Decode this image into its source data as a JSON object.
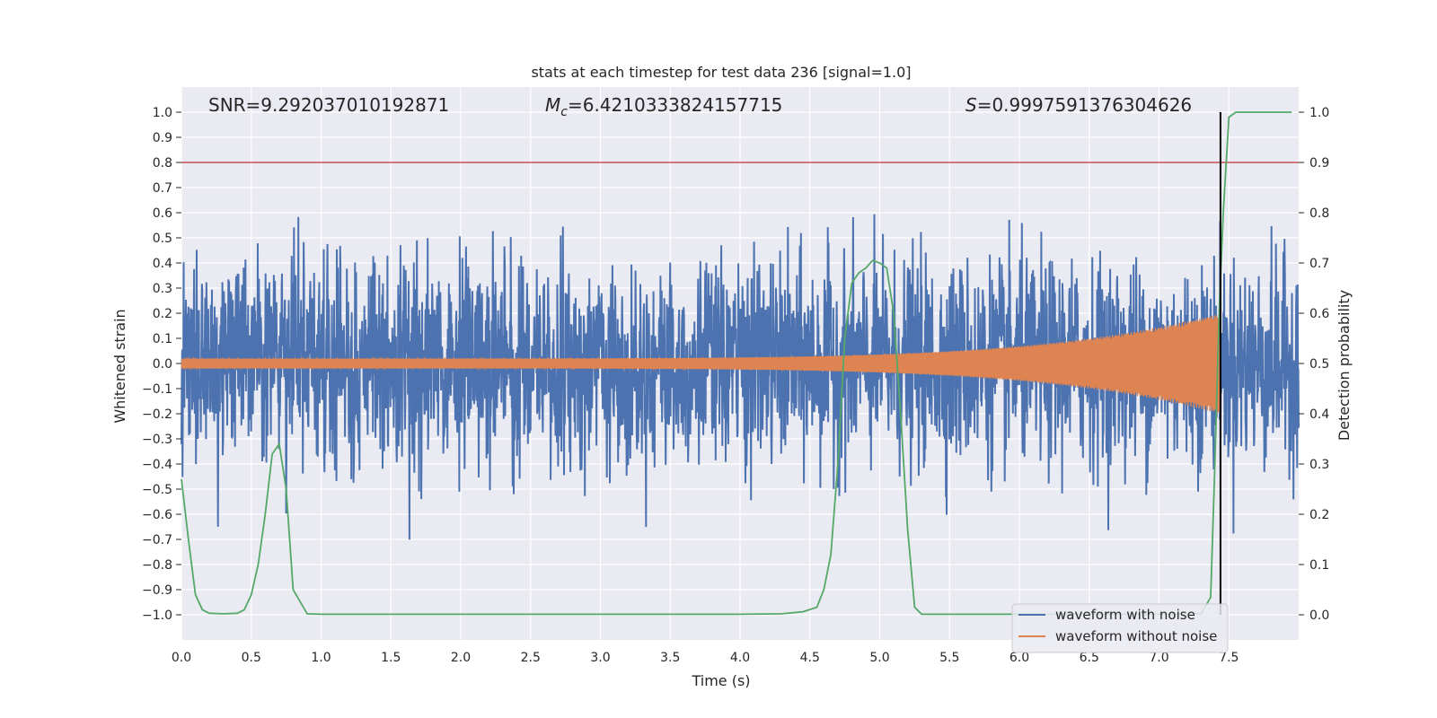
{
  "chart_data": {
    "type": "line",
    "title": "stats at each timestep for test data 236 [signal=1.0]",
    "xlabel": "Time (s)",
    "ylabel": "Whitened strain",
    "ylabel_right": "Detection probability",
    "xlim": [
      0.0,
      8.0
    ],
    "ylim": [
      -1.1,
      1.1
    ],
    "ylim_right": [
      -0.05,
      1.05
    ],
    "x_ticks": [
      "0.0",
      "0.5",
      "1.0",
      "1.5",
      "2.0",
      "2.5",
      "3.0",
      "3.5",
      "4.0",
      "4.5",
      "5.0",
      "5.5",
      "6.0",
      "6.5",
      "7.0",
      "7.5"
    ],
    "y_ticks": [
      "1.0",
      "0.9",
      "0.8",
      "0.7",
      "0.6",
      "0.5",
      "0.4",
      "0.3",
      "0.2",
      "0.1",
      "0.0",
      "−0.1",
      "−0.2",
      "−0.3",
      "−0.4",
      "−0.5",
      "−0.6",
      "−0.7",
      "−0.8",
      "−0.9",
      "−1.0"
    ],
    "y_ticks_right": [
      "1.0",
      "0.9",
      "0.8",
      "0.7",
      "0.6",
      "0.5",
      "0.4",
      "0.3",
      "0.2",
      "0.1",
      "0.0"
    ],
    "grid": true,
    "threshold_line": 0.8,
    "merger_time": 7.44,
    "stats": {
      "snr": "SNR=9.292037010192871",
      "mc_symbol": "M",
      "mc_sub": "c",
      "mc_value": "=6.4210333824157715",
      "s_symbol": "S",
      "s_value": "=0.9997591376304626"
    },
    "legend": {
      "position": "lower-right",
      "entries": [
        {
          "label": "waveform with noise",
          "color": "#4c72b0"
        },
        {
          "label": "waveform without noise",
          "color": "#dd8452"
        }
      ]
    },
    "series": [
      {
        "name": "waveform with noise",
        "color": "#4c72b0",
        "kind": "noise",
        "amplitude": 0.3
      },
      {
        "name": "waveform without noise",
        "color": "#dd8452",
        "kind": "chirp",
        "amplitude_start": 0.02,
        "amplitude_end": 0.2
      },
      {
        "name": "detection probability",
        "color": "#55a868",
        "axis": "right",
        "x": [
          0.0,
          0.05,
          0.1,
          0.15,
          0.2,
          0.3,
          0.4,
          0.45,
          0.5,
          0.55,
          0.6,
          0.65,
          0.7,
          0.75,
          0.8,
          0.9,
          1.0,
          1.5,
          2.0,
          3.0,
          4.0,
          4.3,
          4.45,
          4.55,
          4.6,
          4.65,
          4.7,
          4.75,
          4.8,
          4.85,
          4.9,
          4.95,
          5.0,
          5.05,
          5.1,
          5.15,
          5.2,
          5.25,
          5.3,
          5.5,
          6.0,
          6.5,
          7.0,
          7.2,
          7.3,
          7.37,
          7.4,
          7.43,
          7.46,
          7.5,
          7.55,
          7.7,
          7.95
        ],
        "y": [
          0.27,
          0.15,
          0.04,
          0.01,
          0.003,
          0.002,
          0.003,
          0.01,
          0.04,
          0.1,
          0.2,
          0.32,
          0.34,
          0.25,
          0.05,
          0.002,
          0.001,
          0.001,
          0.001,
          0.001,
          0.001,
          0.002,
          0.006,
          0.015,
          0.05,
          0.12,
          0.3,
          0.55,
          0.66,
          0.68,
          0.69,
          0.705,
          0.7,
          0.69,
          0.6,
          0.4,
          0.17,
          0.015,
          0.001,
          0.001,
          0.001,
          0.001,
          0.001,
          0.001,
          0.002,
          0.035,
          0.3,
          0.6,
          0.8,
          0.99,
          1.0,
          1.0,
          1.0
        ]
      }
    ]
  }
}
